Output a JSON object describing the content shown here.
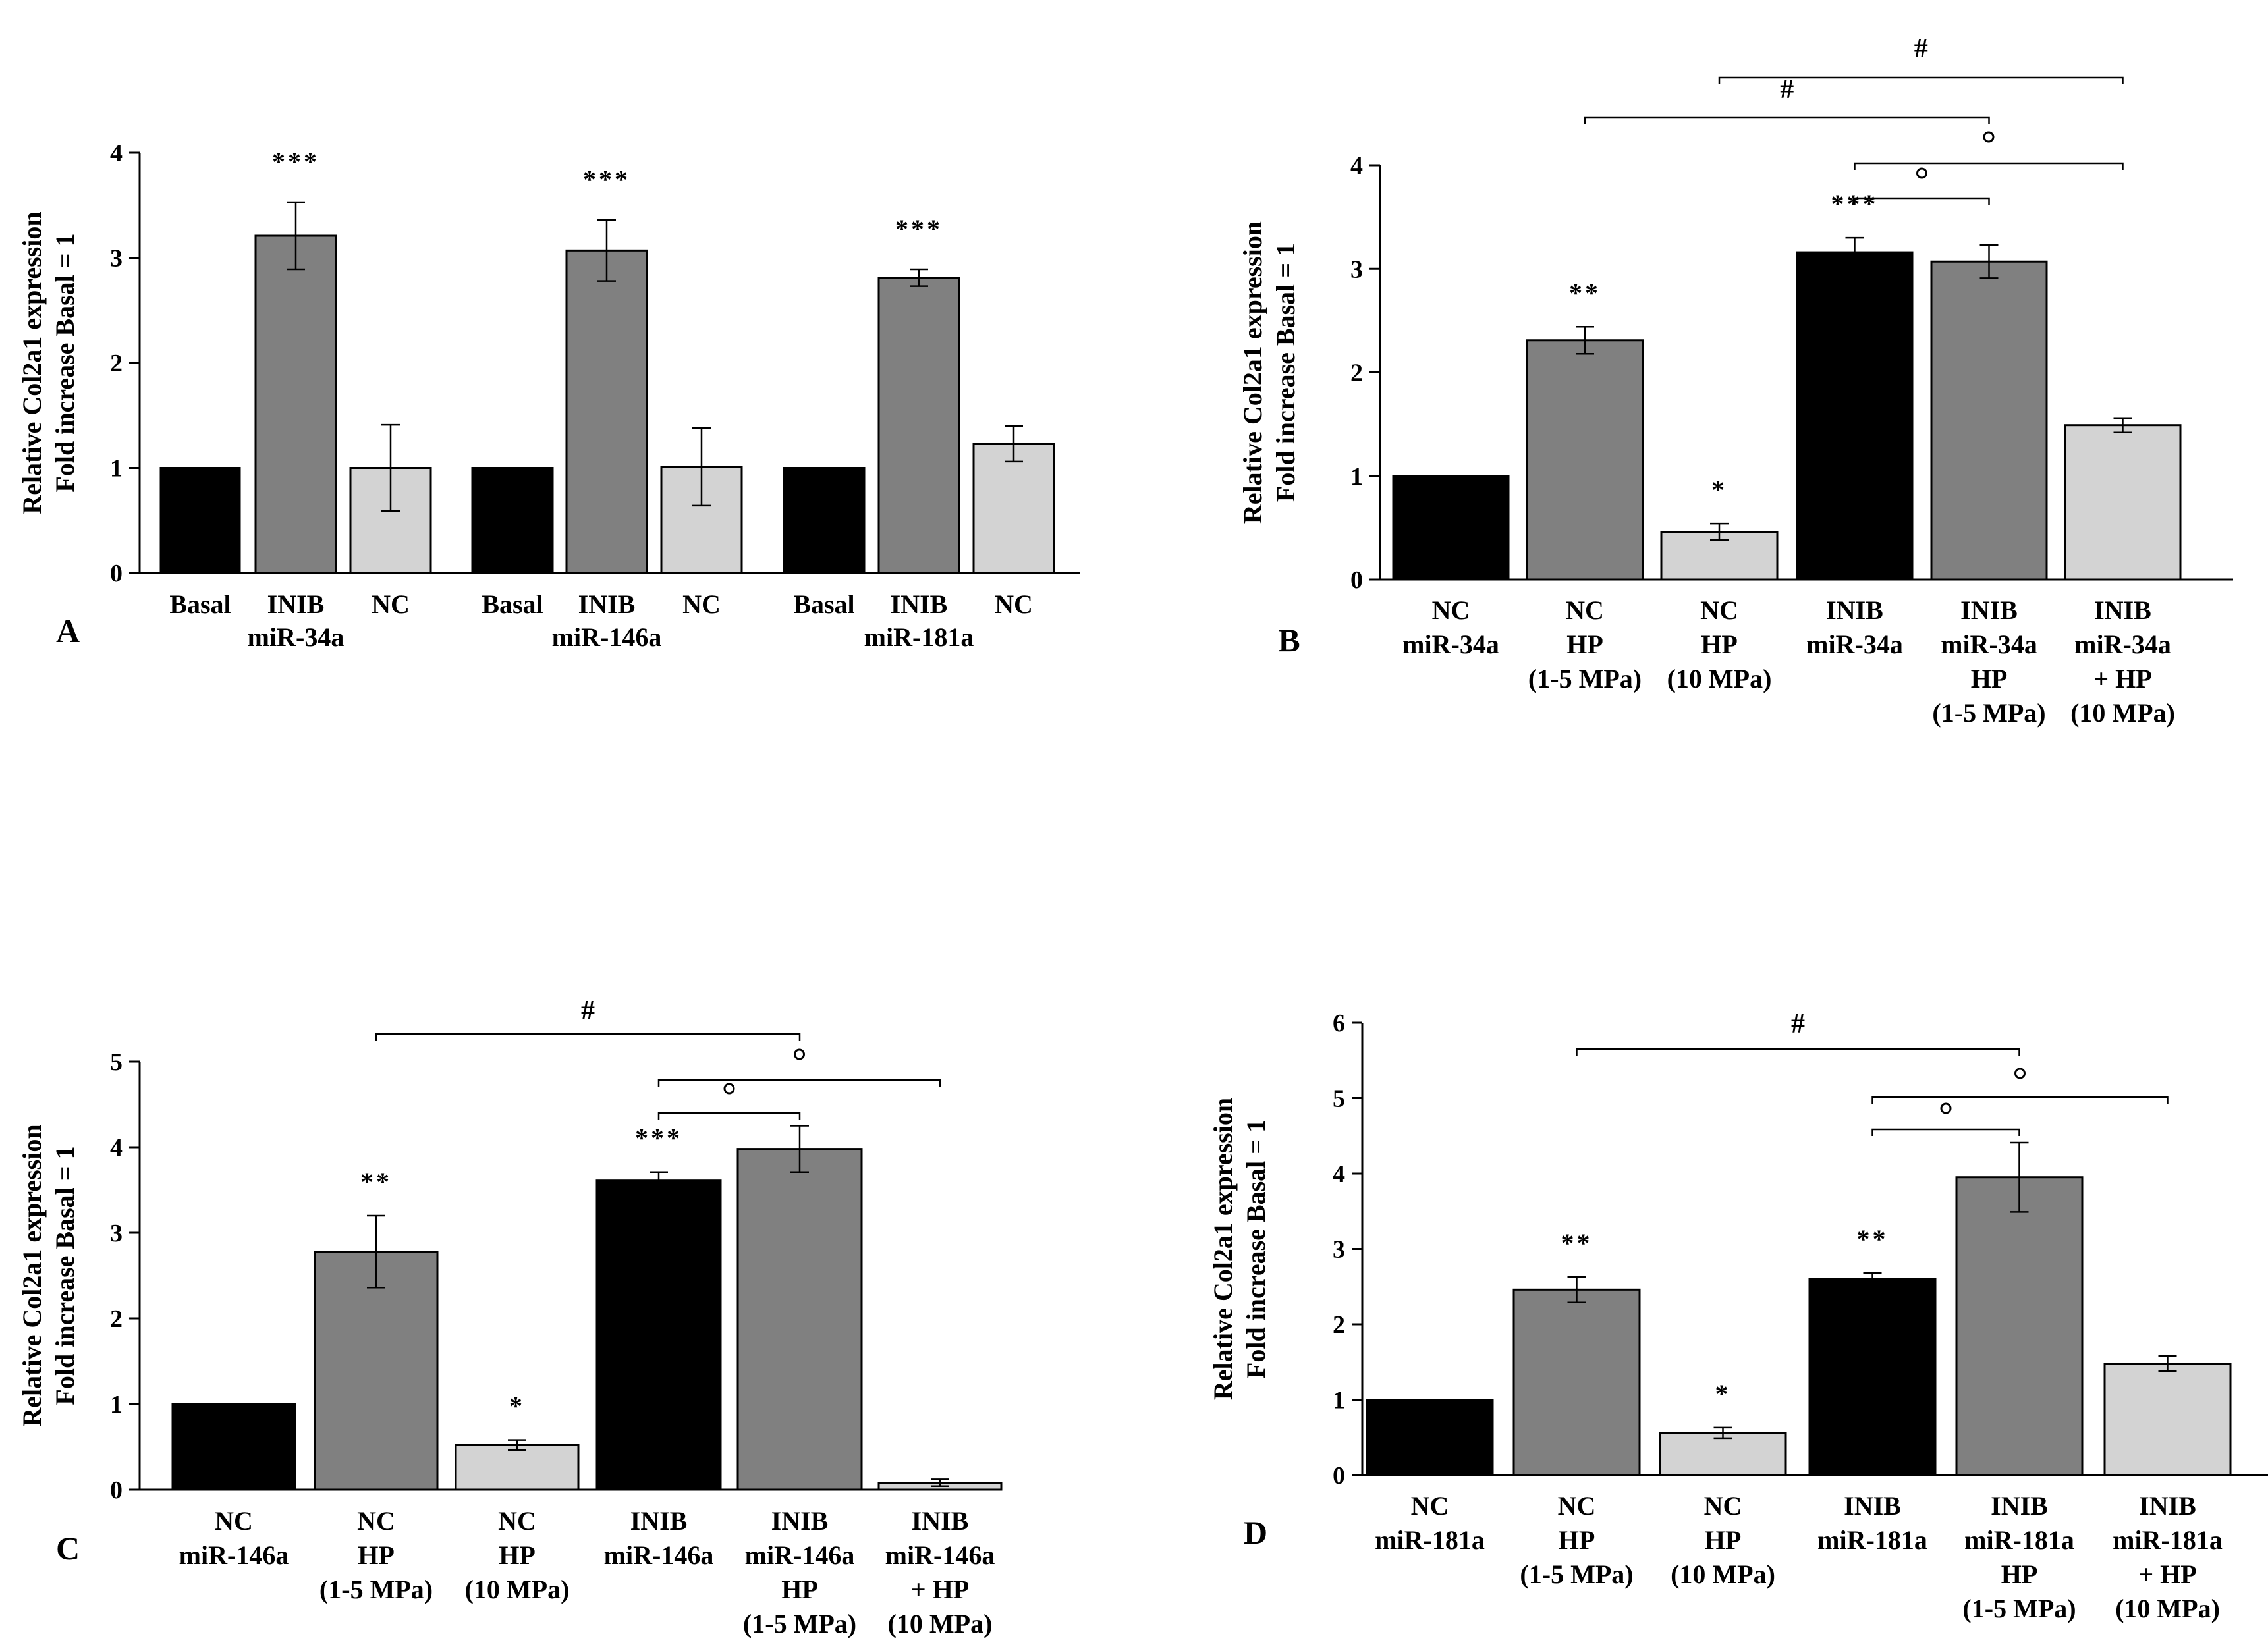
{
  "chart_data": [
    {
      "panel": "A",
      "type": "bar",
      "ylabel": [
        "Relative Col2a1 expression",
        "Fold increase Basal = 1"
      ],
      "ylim": [
        0,
        4
      ],
      "yticks": [
        0,
        1,
        2,
        3,
        4
      ],
      "categories": [
        [
          "Basal"
        ],
        [
          "INIB",
          "miR-34a"
        ],
        [
          "NC"
        ],
        [
          "Basal"
        ],
        [
          "INIB",
          "miR-146a"
        ],
        [
          "NC"
        ],
        [
          "Basal"
        ],
        [
          "INIB",
          "miR-181a"
        ],
        [
          "NC"
        ]
      ],
      "values": [
        1.0,
        3.21,
        1.0,
        1.0,
        3.07,
        1.01,
        1.0,
        2.81,
        1.23
      ],
      "errors": [
        0,
        0.32,
        0.41,
        0,
        0.29,
        0.37,
        0,
        0.08,
        0.17
      ],
      "fills": [
        "#000000",
        "#808080",
        "#d3d3d3",
        "#000000",
        "#808080",
        "#d3d3d3",
        "#000000",
        "#808080",
        "#d3d3d3"
      ],
      "significance": [
        "",
        "***",
        "",
        "",
        "***",
        "",
        "",
        "***",
        ""
      ],
      "brackets": []
    },
    {
      "panel": "B",
      "type": "bar",
      "ylabel": [
        "Relative Col2a1 expression",
        "Fold increase Basal = 1"
      ],
      "ylim": [
        0,
        4
      ],
      "yticks": [
        0,
        1,
        2,
        3,
        4
      ],
      "categories": [
        [
          "NC",
          "miR-34a"
        ],
        [
          "NC",
          "HP",
          "(1-5 MPa)"
        ],
        [
          "NC",
          "HP",
          "(10 MPa)"
        ],
        [
          "INIB",
          "miR-34a"
        ],
        [
          "INIB",
          "miR-34a",
          "HP",
          "(1-5 MPa)"
        ],
        [
          "INIB",
          "miR-34a",
          "+ HP",
          "(10 MPa)"
        ]
      ],
      "values": [
        1.0,
        2.31,
        0.46,
        3.16,
        3.07,
        1.49
      ],
      "errors": [
        0,
        0.13,
        0.08,
        0.14,
        0.16,
        0.07
      ],
      "fills": [
        "#000000",
        "#808080",
        "#d3d3d3",
        "#000000",
        "#808080",
        "#d3d3d3"
      ],
      "significance": [
        "",
        "**",
        "*",
        "***",
        "",
        ""
      ],
      "brackets": [
        {
          "from": 1,
          "to": 4,
          "symbol": "#"
        },
        {
          "from": 2,
          "to": 5,
          "symbol": "#"
        },
        {
          "from": 3,
          "to": 5,
          "symbol": "°"
        },
        {
          "from": 3,
          "to": 4,
          "symbol": "°"
        }
      ]
    },
    {
      "panel": "C",
      "type": "bar",
      "ylabel": [
        "Relative Col2a1 expression",
        "Fold increase Basal = 1"
      ],
      "ylim": [
        0,
        5
      ],
      "yticks": [
        0,
        1,
        2,
        3,
        4,
        5
      ],
      "categories": [
        [
          "NC",
          "miR-146a"
        ],
        [
          "NC",
          "HP",
          "(1-5 MPa)"
        ],
        [
          "NC",
          "HP",
          "(10 MPa)"
        ],
        [
          "INIB",
          "miR-146a"
        ],
        [
          "INIB",
          "miR-146a",
          "HP",
          "(1-5 MPa)"
        ],
        [
          "INIB",
          "miR-146a",
          "+ HP",
          "(10 MPa)"
        ]
      ],
      "values": [
        1.0,
        2.78,
        0.52,
        3.61,
        3.98,
        0.08
      ],
      "errors": [
        0,
        0.42,
        0.06,
        0.1,
        0.27,
        0.04
      ],
      "fills": [
        "#000000",
        "#808080",
        "#d3d3d3",
        "#000000",
        "#808080",
        "#d3d3d3"
      ],
      "significance": [
        "",
        "**",
        "*",
        "***",
        "",
        ""
      ],
      "brackets": [
        {
          "from": 1,
          "to": 4,
          "symbol": "#"
        },
        {
          "from": 3,
          "to": 5,
          "symbol": "°"
        },
        {
          "from": 3,
          "to": 4,
          "symbol": "°"
        }
      ]
    },
    {
      "panel": "D",
      "type": "bar",
      "ylabel": [
        "Relative Col2a1 expression",
        "Fold increase Basal = 1"
      ],
      "ylim": [
        0,
        6
      ],
      "yticks": [
        0,
        1,
        2,
        3,
        4,
        5,
        6
      ],
      "categories": [
        [
          "NC",
          "miR-181a"
        ],
        [
          "NC",
          "HP",
          "(1-5 MPa)"
        ],
        [
          "NC",
          "HP",
          "(10 MPa)"
        ],
        [
          "INIB",
          "miR-181a"
        ],
        [
          "INIB",
          "miR-181a",
          "HP",
          "(1-5 MPa)"
        ],
        [
          "INIB",
          "miR-181a",
          "+ HP",
          "(10 MPa)"
        ]
      ],
      "values": [
        1.0,
        2.46,
        0.56,
        2.6,
        3.95,
        1.48
      ],
      "errors": [
        0,
        0.17,
        0.07,
        0.08,
        0.46,
        0.1
      ],
      "fills": [
        "#000000",
        "#808080",
        "#d3d3d3",
        "#000000",
        "#808080",
        "#d3d3d3"
      ],
      "significance": [
        "",
        "**",
        "*",
        "**",
        "",
        ""
      ],
      "brackets": [
        {
          "from": 1,
          "to": 4,
          "symbol": "#"
        },
        {
          "from": 3,
          "to": 5,
          "symbol": "°"
        },
        {
          "from": 3,
          "to": 4,
          "symbol": "°"
        }
      ]
    }
  ]
}
